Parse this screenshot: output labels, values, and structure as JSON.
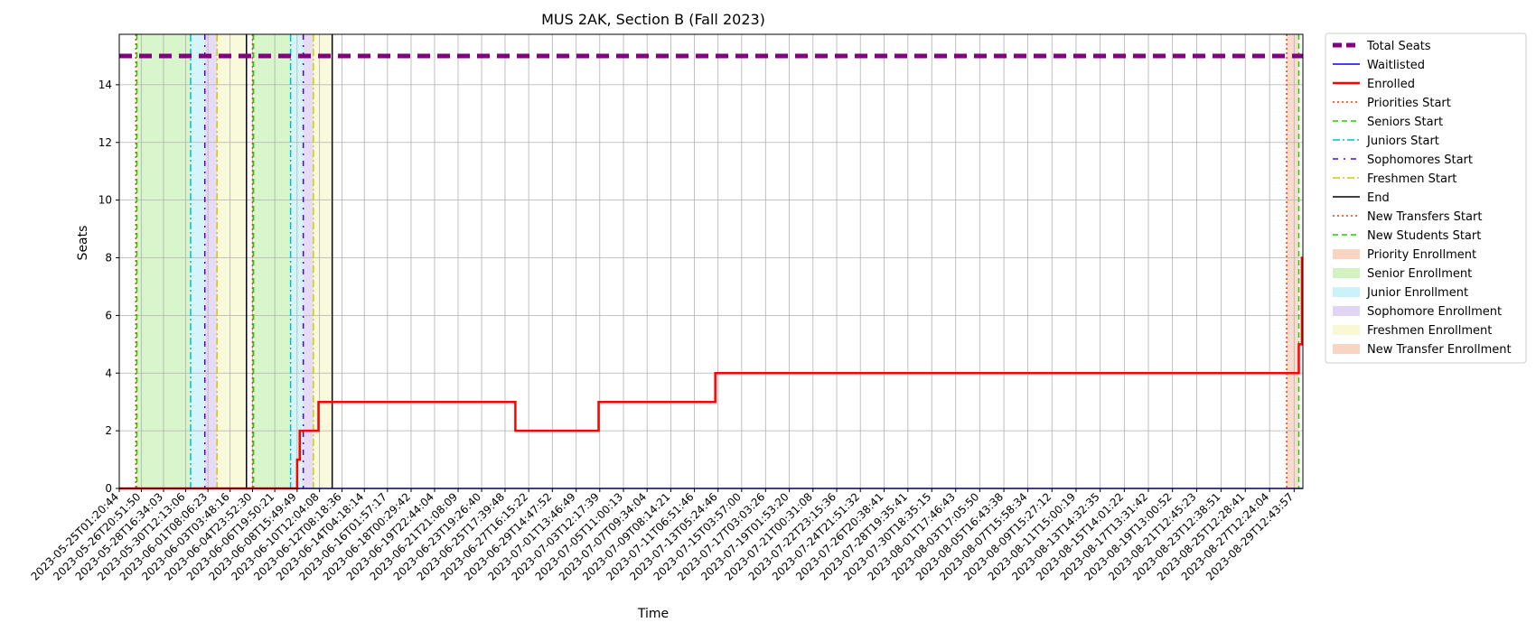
{
  "chart_data": {
    "type": "line",
    "title": "MUS 2AK, Section B (Fall 2023)",
    "xlabel": "Time",
    "ylabel": "Seats",
    "x_range": [
      "2023-05-25T01:20:44",
      "2023-08-30T06:00:00"
    ],
    "ylim": [
      0,
      15.75
    ],
    "y_ticks": [
      0,
      2,
      4,
      6,
      8,
      10,
      12,
      14
    ],
    "grid": true,
    "legend_position": "outside-right",
    "x_tick_labels": [
      "2023-05-25T01:20:44",
      "2023-05-26T20:51:50",
      "2023-05-28T16:34:03",
      "2023-05-30T12:13:06",
      "2023-06-01T08:06:23",
      "2023-06-03T03:48:16",
      "2023-06-04T23:52:30",
      "2023-06-06T19:50:21",
      "2023-06-08T15:49:49",
      "2023-06-10T12:04:08",
      "2023-06-12T08:18:36",
      "2023-06-14T04:18:14",
      "2023-06-16T01:57:17",
      "2023-06-18T00:29:42",
      "2023-06-19T22:44:04",
      "2023-06-21T21:08:09",
      "2023-06-23T19:26:40",
      "2023-06-25T17:39:48",
      "2023-06-27T16:15:22",
      "2023-06-29T14:47:52",
      "2023-07-01T13:46:49",
      "2023-07-03T12:17:39",
      "2023-07-05T11:00:13",
      "2023-07-07T09:34:04",
      "2023-07-09T08:14:21",
      "2023-07-11T06:51:46",
      "2023-07-13T05:24:46",
      "2023-07-15T03:57:00",
      "2023-07-17T03:03:26",
      "2023-07-19T01:53:20",
      "2023-07-21T00:31:08",
      "2023-07-22T23:15:36",
      "2023-07-24T21:51:32",
      "2023-07-26T20:38:41",
      "2023-07-28T19:35:41",
      "2023-07-30T18:35:15",
      "2023-08-01T17:46:43",
      "2023-08-03T17:05:50",
      "2023-08-05T16:43:38",
      "2023-08-07T15:58:34",
      "2023-08-09T15:27:12",
      "2023-08-11T15:00:19",
      "2023-08-13T14:32:35",
      "2023-08-15T14:01:22",
      "2023-08-17T13:31:42",
      "2023-08-19T13:00:52",
      "2023-08-21T12:45:23",
      "2023-08-23T12:38:51",
      "2023-08-25T12:28:41",
      "2023-08-27T12:24:04",
      "2023-08-29T12:43:57"
    ],
    "series": [
      {
        "name": "Total Seats",
        "style": "dashed-thick",
        "color": "#800080",
        "points": [
          [
            "2023-05-25T01:20:44",
            15
          ],
          [
            "2023-08-30T06:00:00",
            15
          ]
        ]
      },
      {
        "name": "Waitlisted",
        "style": "solid",
        "color": "#0000ff",
        "points": [
          [
            "2023-05-25T01:20:44",
            0
          ],
          [
            "2023-08-30T06:00:00",
            0
          ]
        ]
      },
      {
        "name": "Enrolled",
        "style": "step",
        "color": "#ff0000",
        "points": [
          [
            "2023-05-25T01:20:44",
            0
          ],
          [
            "2023-06-08T15:49:49",
            0
          ],
          [
            "2023-06-08T15:55:00",
            1
          ],
          [
            "2023-06-08T21:00:00",
            2
          ],
          [
            "2023-06-10T10:00:00",
            3
          ],
          [
            "2023-06-26T14:00:00",
            2
          ],
          [
            "2023-07-03T10:00:00",
            3
          ],
          [
            "2023-07-13T00:00:00",
            4
          ],
          [
            "2023-08-29T22:00:00",
            5
          ],
          [
            "2023-08-30T04:00:00",
            8
          ],
          [
            "2023-08-30T06:00:00",
            8
          ]
        ]
      }
    ],
    "markers": [
      {
        "name": "Priorities Start",
        "style": "dotted",
        "color": "#ff3300",
        "x": [
          "2023-05-26T10:00:00",
          "2023-06-05T00:00:00"
        ]
      },
      {
        "name": "Seniors Start",
        "style": "dashed",
        "color": "#22cc00",
        "x": [
          "2023-05-26T12:00:00",
          "2023-06-05T02:00:00"
        ]
      },
      {
        "name": "Juniors Start",
        "style": "dashdot",
        "color": "#00bcd4",
        "x": [
          "2023-05-30T22:00:00",
          "2023-06-08T03:00:00"
        ]
      },
      {
        "name": "Sophomores Start",
        "style": "dashdot-sparse",
        "color": "#5b00c8",
        "x": [
          "2023-06-01T02:00:00",
          "2023-06-09T04:00:00"
        ]
      },
      {
        "name": "Freshmen Start",
        "style": "dashdot",
        "color": "#cccc00",
        "x": [
          "2023-06-02T02:00:00",
          "2023-06-10T00:00:00"
        ]
      },
      {
        "name": "End",
        "style": "solid",
        "color": "#000000",
        "x": [
          "2023-06-04T12:00:00",
          "2023-06-11T13:00:00"
        ]
      },
      {
        "name": "New Transfers Start",
        "style": "dotted",
        "color": "#ff3300",
        "x": [
          "2023-08-28T22:00:00"
        ]
      },
      {
        "name": "New Students Start",
        "style": "dashed",
        "color": "#22cc00",
        "x": [
          "2023-08-29T22:00:00"
        ]
      }
    ],
    "regions": [
      {
        "name": "Priority Enrollment",
        "color": "#f6c9b4",
        "spans": []
      },
      {
        "name": "Senior Enrollment",
        "color": "#c5f0b0",
        "spans": [
          [
            "2023-05-26T12:00:00",
            "2023-05-30T22:00:00"
          ],
          [
            "2023-06-05T02:00:00",
            "2023-06-08T03:00:00"
          ]
        ]
      },
      {
        "name": "Junior Enrollment",
        "color": "#bdeff7",
        "spans": [
          [
            "2023-05-30T22:00:00",
            "2023-06-01T02:00:00"
          ],
          [
            "2023-06-08T03:00:00",
            "2023-06-09T04:00:00"
          ]
        ]
      },
      {
        "name": "Sophomore Enrollment",
        "color": "#d9c9f2",
        "spans": [
          [
            "2023-06-01T02:00:00",
            "2023-06-02T02:00:00"
          ],
          [
            "2023-06-09T04:00:00",
            "2023-06-10T00:00:00"
          ]
        ]
      },
      {
        "name": "Freshmen Enrollment",
        "color": "#f6f6c9",
        "spans": [
          [
            "2023-06-02T02:00:00",
            "2023-06-04T12:00:00"
          ],
          [
            "2023-06-10T00:00:00",
            "2023-06-11T13:00:00"
          ]
        ]
      },
      {
        "name": "New Transfer Enrollment",
        "color": "#f6c9b4",
        "spans": [
          [
            "2023-08-28T22:00:00",
            "2023-08-29T22:00:00"
          ]
        ]
      }
    ]
  }
}
